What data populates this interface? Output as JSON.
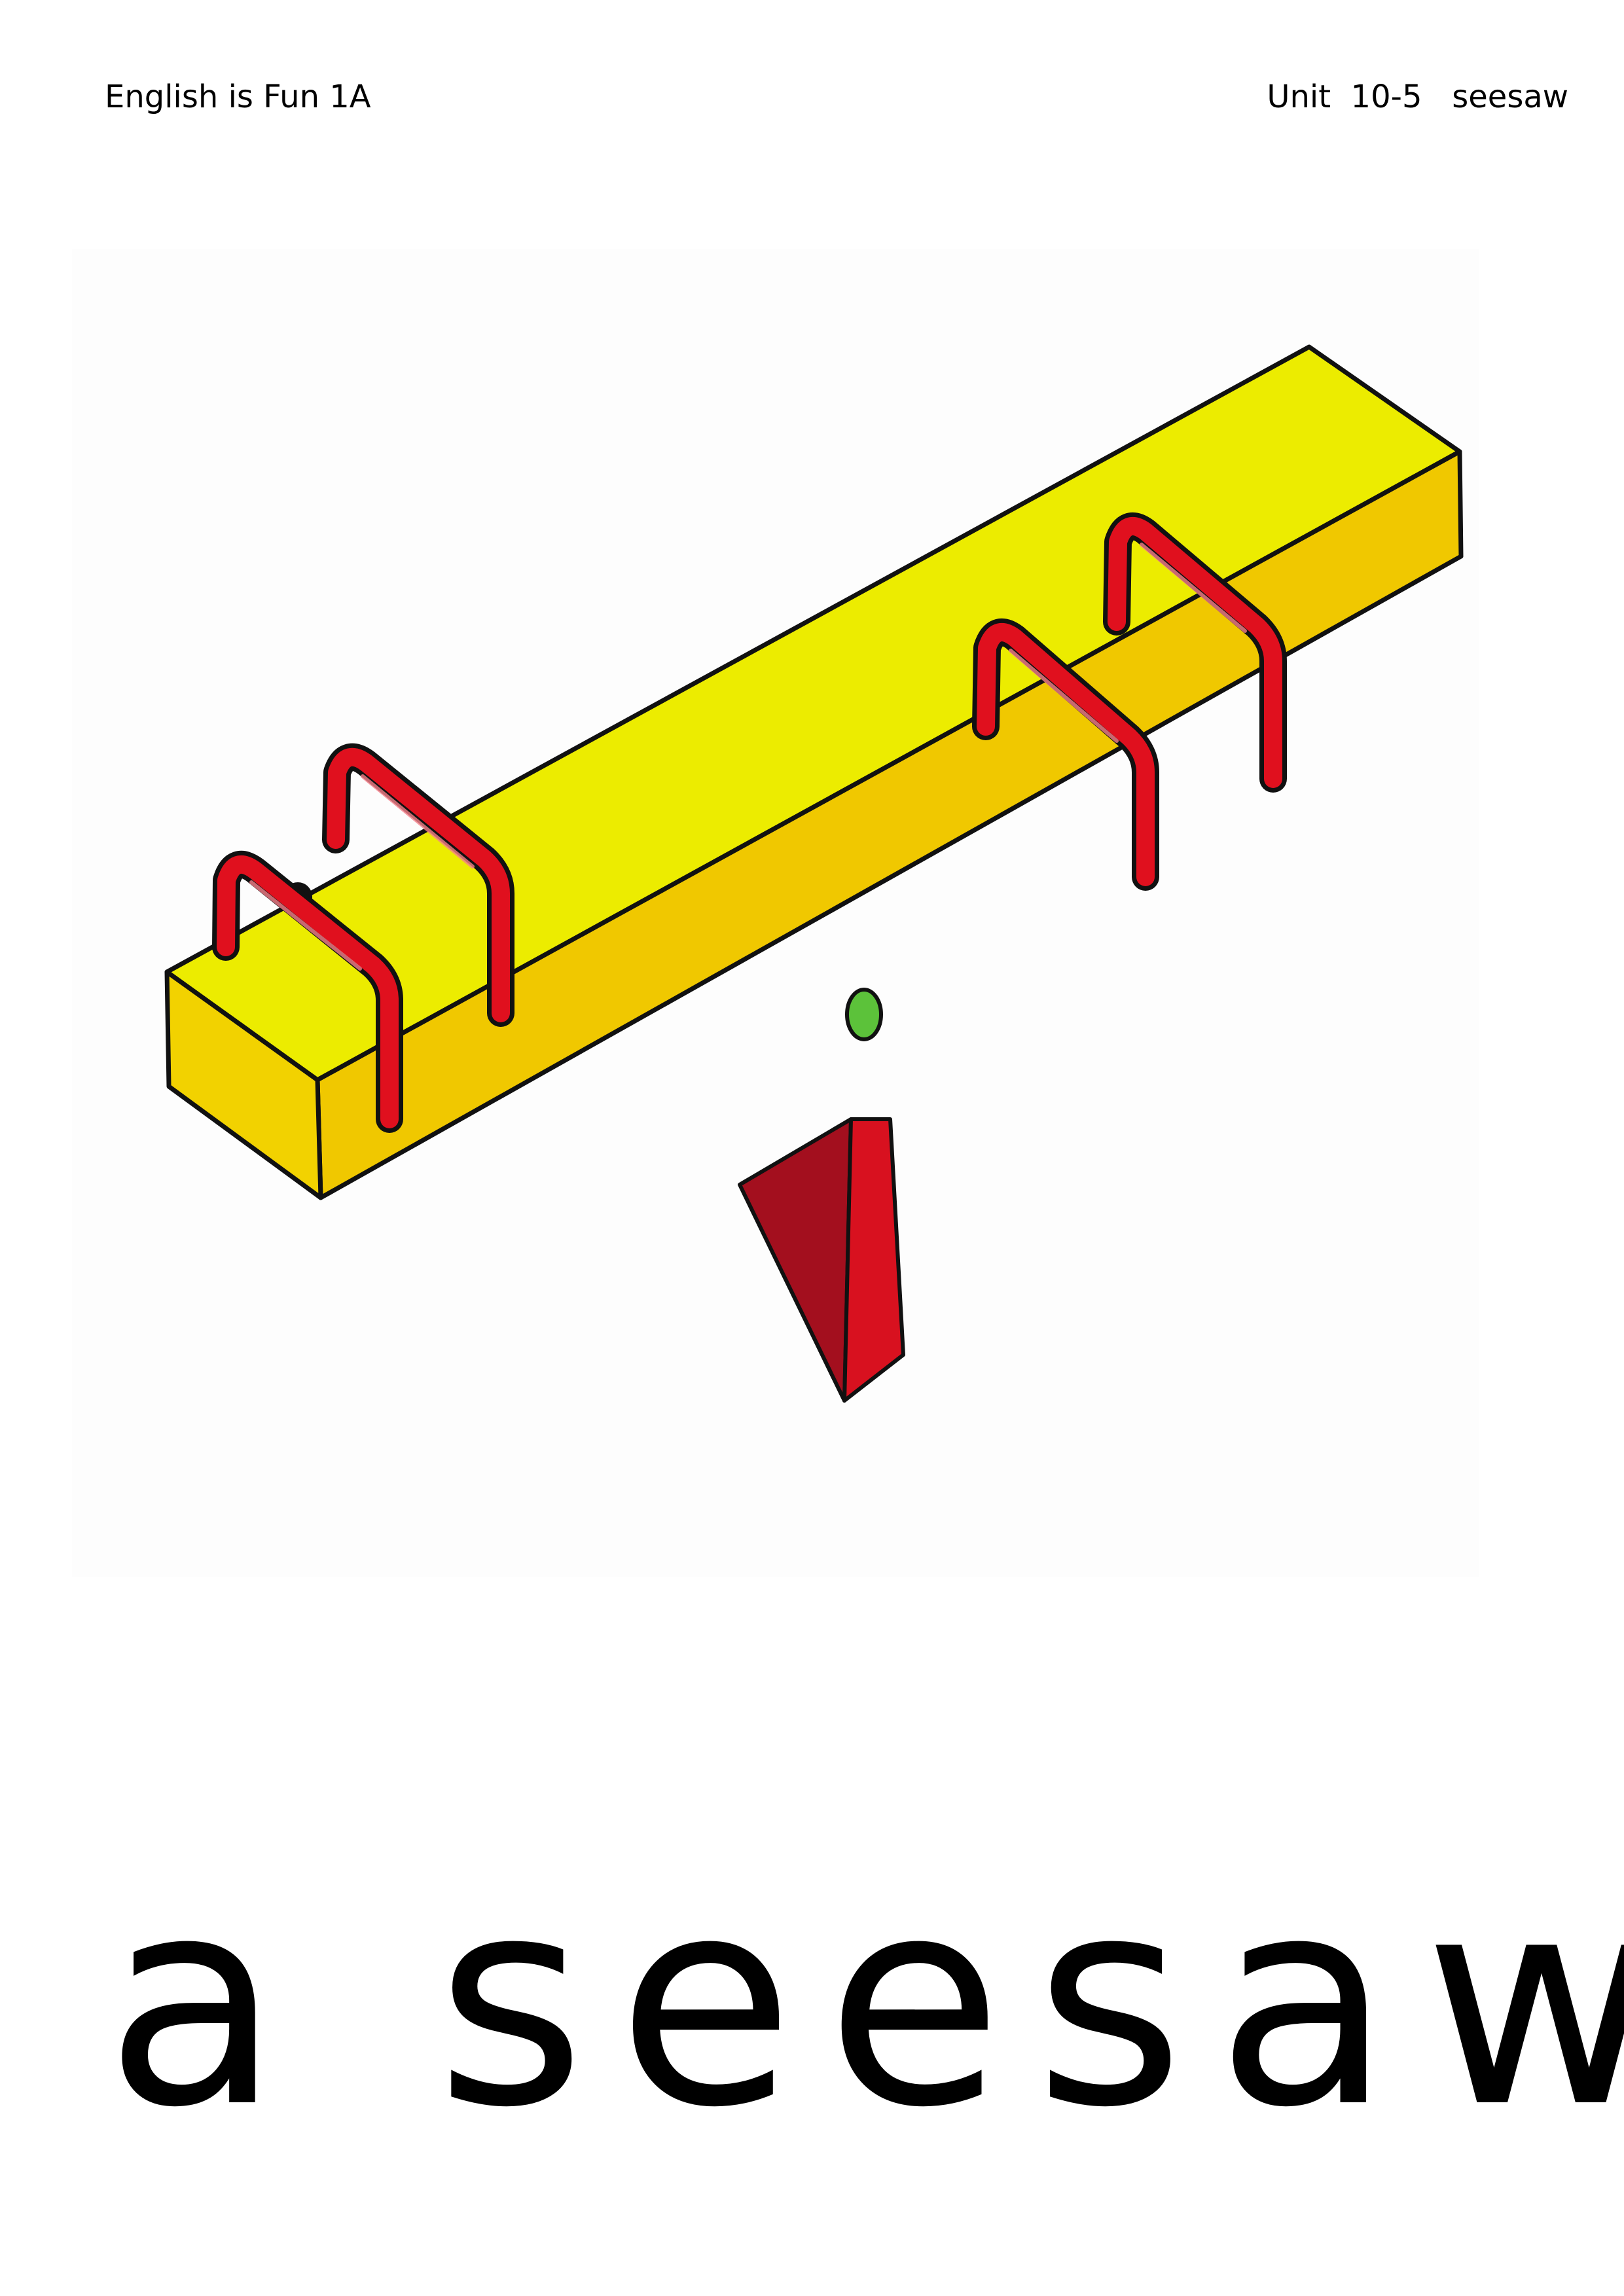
{
  "header": {
    "book_title": "English is Fun 1A",
    "unit_label": "Unit  10-5   seesaw"
  },
  "illustration": {
    "subject": "seesaw",
    "colors": {
      "board_top": "#ECEC00",
      "board_side": "#F0C800",
      "handles": "#E0101E",
      "fulcrum_dark": "#A30F1E",
      "fulcrum_light": "#D8111F",
      "pivot": "#5CC23A",
      "outline": "#111111"
    }
  },
  "caption": {
    "word": "a seesaw"
  }
}
